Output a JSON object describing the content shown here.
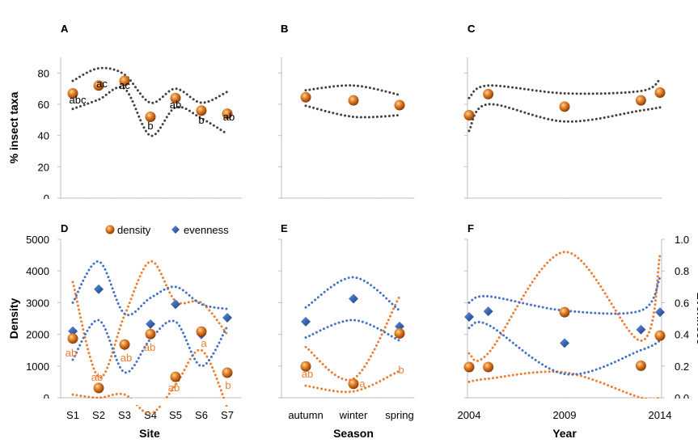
{
  "chart_data": [
    {
      "panel": "A",
      "type": "scatter",
      "categories": [
        "S1",
        "S2",
        "S3",
        "S4",
        "S5",
        "S6",
        "S7"
      ],
      "ylabel": "% insect taxa",
      "ylim": [
        0,
        90
      ],
      "yticks": [
        0,
        20,
        40,
        60,
        80
      ],
      "series": [
        {
          "values": [
            67,
            72,
            75,
            52,
            64,
            56,
            54
          ]
        }
      ],
      "ci_upper": [
        75,
        83,
        79,
        61,
        70,
        61,
        68
      ],
      "ci_lower": [
        57,
        63,
        70,
        40,
        58,
        51,
        41
      ],
      "letters": [
        "abc",
        "ac",
        "ac",
        "b",
        "ab",
        "b",
        "ab"
      ],
      "color": "#b85a12"
    },
    {
      "panel": "B",
      "type": "scatter",
      "categories": [
        "autumn",
        "winter",
        "spring"
      ],
      "ylim": [
        0,
        90
      ],
      "series": [
        {
          "values": [
            64.5,
            62.5,
            59.5
          ]
        }
      ],
      "ci_upper": [
        69,
        72,
        66
      ],
      "ci_lower": [
        59,
        52,
        53
      ],
      "color": "#b85a12"
    },
    {
      "panel": "C",
      "type": "scatter",
      "xlim": [
        2004,
        2014
      ],
      "ylim": [
        0,
        90
      ],
      "series": [
        {
          "x": [
            2004,
            2005,
            2009,
            2013,
            2014
          ],
          "values": [
            53,
            66.5,
            58.5,
            62.5,
            67.5
          ]
        }
      ],
      "ci_upper_x": [
        2004,
        2005,
        2009,
        2013,
        2014
      ],
      "ci_upper": [
        64,
        72,
        67,
        68.5,
        76
      ],
      "ci_lower": [
        43,
        60,
        49,
        56,
        58
      ],
      "color": "#b85a12"
    },
    {
      "panel": "D",
      "type": "scatter",
      "categories": [
        "S1",
        "S2",
        "S3",
        "S4",
        "S5",
        "S6",
        "S7"
      ],
      "xlabel": "Site",
      "ylabel": "Density",
      "ylim": [
        0,
        5000
      ],
      "yticks": [
        0,
        1000,
        2000,
        3000,
        4000,
        5000
      ],
      "legend": {
        "position": "top",
        "entries": [
          "density",
          "evenness"
        ]
      },
      "series": [
        {
          "name": "density",
          "values": [
            1870,
            310,
            1680,
            2010,
            660,
            2090,
            790
          ],
          "color": "#b85a12"
        },
        {
          "name": "evenness",
          "values": [
            0.42,
            0.685,
            0.33,
            0.465,
            0.59,
            0.4,
            0.505
          ],
          "color": "#2f5597"
        }
      ],
      "density_ci_upper": [
        3650,
        650,
        2600,
        4300,
        3050,
        3000,
        2000
      ],
      "density_ci_lower": [
        100,
        0,
        100,
        -500,
        400,
        1500,
        -300
      ],
      "evenness_ci_upper": [
        0.6,
        0.86,
        0.53,
        0.63,
        0.7,
        0.59,
        0.56
      ],
      "evenness_ci_lower": [
        0.24,
        0.49,
        0.16,
        0.37,
        0.48,
        0.2,
        0.45
      ],
      "letters": [
        "ab",
        "ab",
        "ab",
        "ab",
        "ab",
        "a",
        "b"
      ]
    },
    {
      "panel": "E",
      "type": "scatter",
      "categories": [
        "autumn",
        "winter",
        "spring"
      ],
      "xlabel": "Season",
      "ylim": [
        0,
        5000
      ],
      "series": [
        {
          "name": "density",
          "values": [
            990,
            440,
            2030
          ],
          "color": "#b85a12"
        },
        {
          "name": "evenness",
          "values": [
            0.48,
            0.625,
            0.45
          ],
          "color": "#2f5597"
        }
      ],
      "density_ci_upper": [
        1600,
        600,
        3200
      ],
      "density_ci_lower": [
        380,
        200,
        850
      ],
      "evenness_ci_upper": [
        0.57,
        0.76,
        0.55
      ],
      "evenness_ci_lower": [
        0.38,
        0.49,
        0.36
      ],
      "letters": [
        "ab",
        "a",
        "b"
      ]
    },
    {
      "panel": "F",
      "type": "scatter",
      "xlabel": "Year",
      "y2label": "Evenness",
      "xlim": [
        2004,
        2014
      ],
      "xticks": [
        2004,
        2009,
        2014
      ],
      "ylim": [
        0,
        5000
      ],
      "y2lim": [
        0.0,
        1.0
      ],
      "y2ticks": [
        "0.0",
        "0.2",
        "0.4",
        "0.6",
        "0.8",
        "1.0"
      ],
      "series": [
        {
          "name": "density",
          "x": [
            2004,
            2005,
            2009,
            2013,
            2014
          ],
          "values": [
            970,
            970,
            2700,
            1010,
            1960
          ],
          "color": "#b85a12"
        },
        {
          "name": "evenness",
          "x": [
            2004,
            2005,
            2009,
            2013,
            2014
          ],
          "values": [
            0.51,
            0.545,
            0.345,
            0.43,
            0.54
          ],
          "color": "#2f5597"
        }
      ],
      "density_ci_upper": [
        1400,
        1400,
        4600,
        1800,
        4500
      ],
      "density_ci_lower": [
        500,
        600,
        800,
        0,
        0
      ],
      "evenness_ci_upper": [
        0.6,
        0.64,
        0.55,
        0.55,
        0.76
      ],
      "evenness_ci_lower": [
        0.44,
        0.46,
        0.15,
        0.3,
        0.36
      ]
    }
  ]
}
